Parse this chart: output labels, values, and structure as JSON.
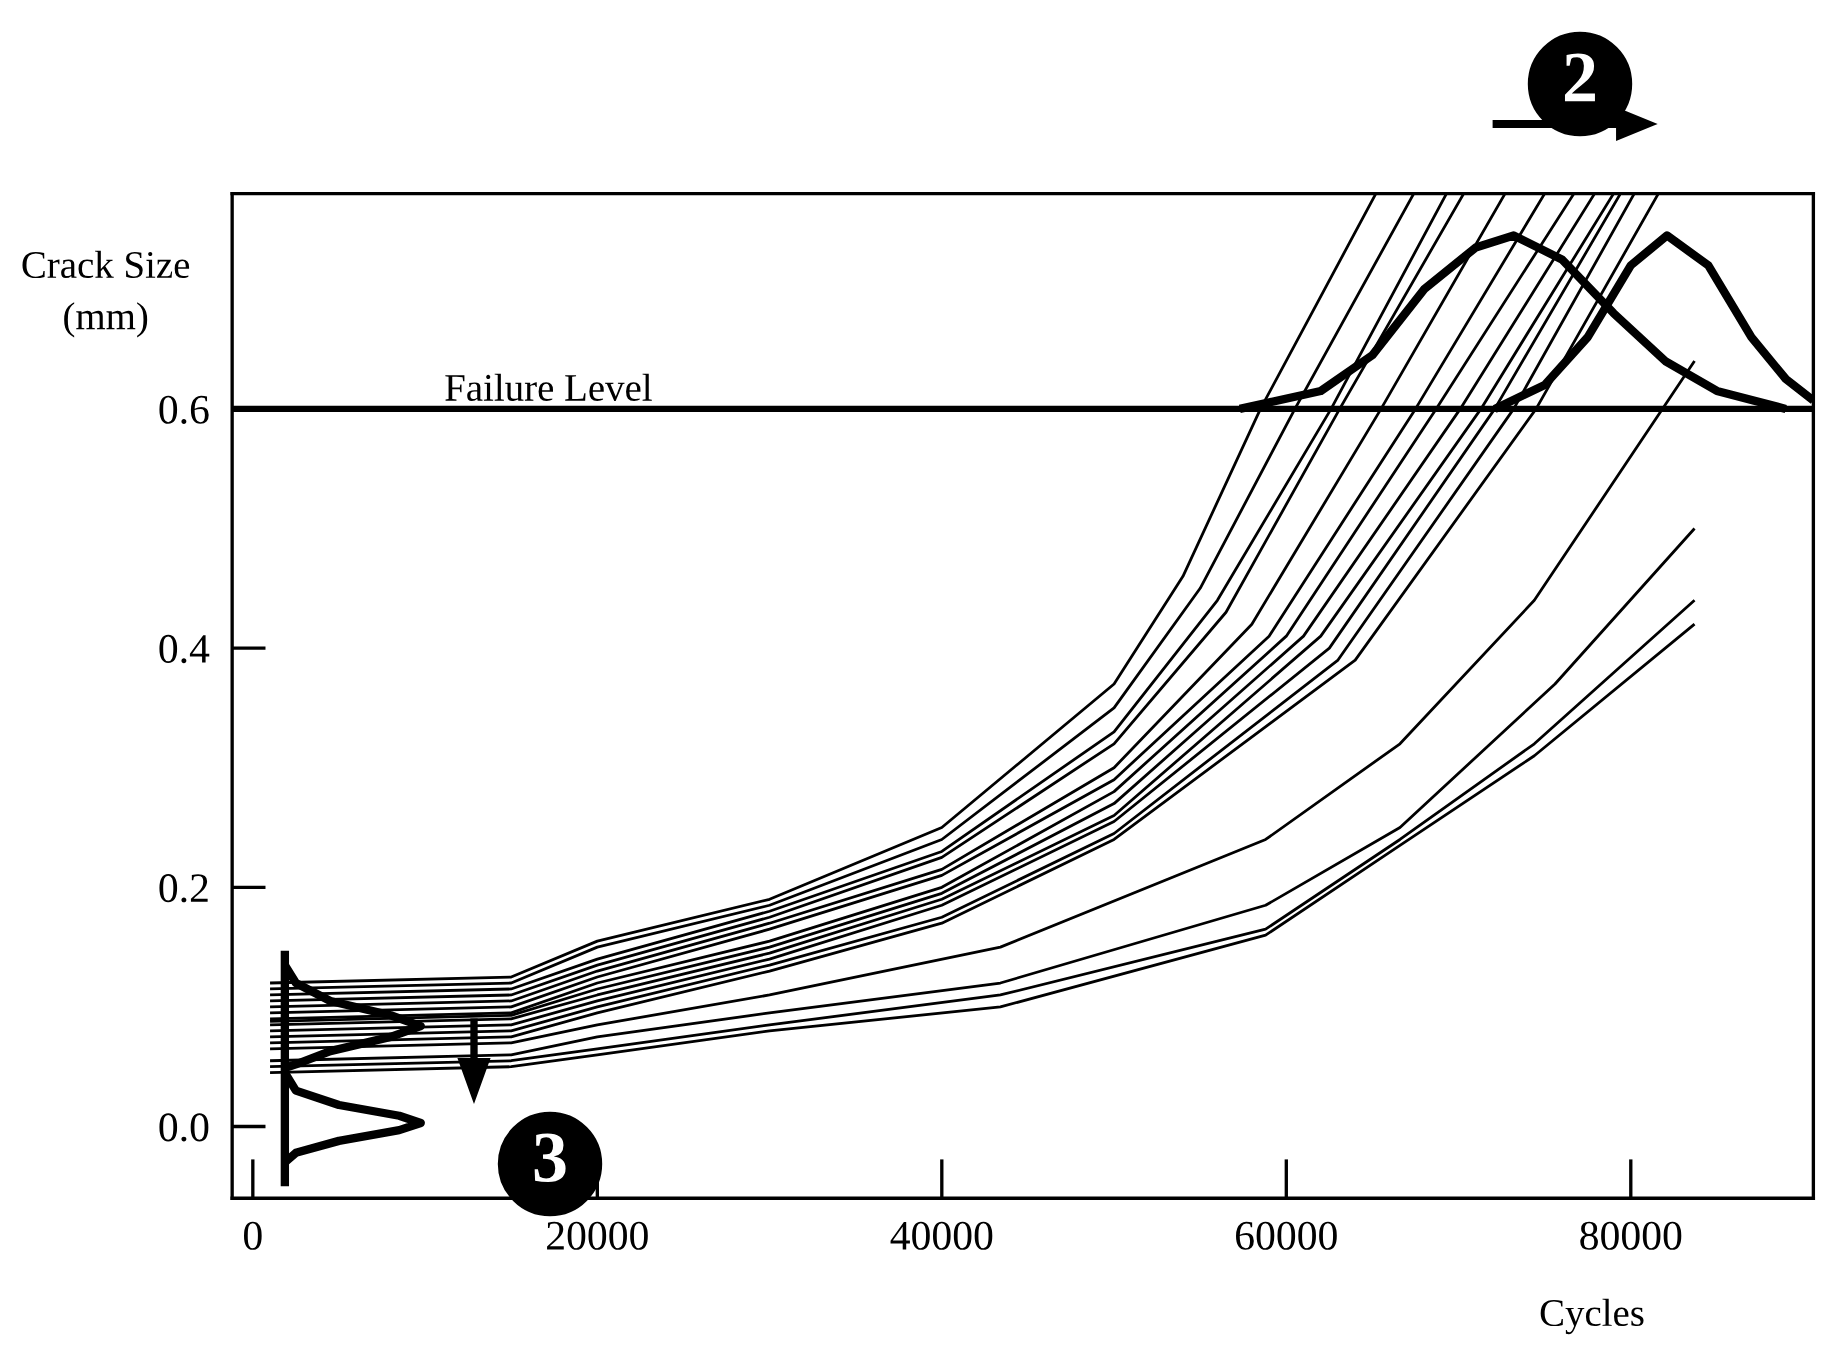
{
  "chart_data": {
    "type": "line",
    "xlabel": "Cycles",
    "ylabel": "Crack Size\n(mm)",
    "xlim": [
      -1200,
      90600
    ],
    "ylim": [
      -0.06,
      0.78
    ],
    "xticks": [
      0,
      20000,
      40000,
      60000,
      80000
    ],
    "yticks": [
      {
        "value": 0,
        "label": "0.0"
      },
      {
        "value": 0.2,
        "label": "0.2"
      },
      {
        "value": 0.4,
        "label": "0.4"
      },
      {
        "value": 0.6,
        "label": "0.6"
      }
    ],
    "grid": false,
    "legend": false,
    "marker": "none",
    "line_style": "solid",
    "ref_lines": [
      {
        "axis": "y",
        "value": 0.6,
        "label": "Failure Level",
        "color": "#000000"
      }
    ],
    "annotations": [
      "2",
      "3"
    ],
    "series": [
      {
        "color": "#000000",
        "x": [
          1000,
          15000,
          20000,
          30000,
          40000,
          50000,
          54000,
          58500,
          65200
        ],
        "values": [
          0.12,
          0.125,
          0.155,
          0.19,
          0.25,
          0.37,
          0.46,
          0.6,
          0.78
        ]
      },
      {
        "color": "#000000",
        "x": [
          1000,
          15000,
          20000,
          30000,
          40000,
          50000,
          55000,
          60500,
          67400
        ],
        "values": [
          0.115,
          0.12,
          0.15,
          0.185,
          0.24,
          0.35,
          0.45,
          0.6,
          0.78
        ]
      },
      {
        "color": "#000000",
        "x": [
          1000,
          15000,
          20000,
          30000,
          40000,
          50000,
          56000,
          62600,
          69300
        ],
        "values": [
          0.11,
          0.115,
          0.14,
          0.18,
          0.23,
          0.33,
          0.44,
          0.6,
          0.78
        ]
      },
      {
        "color": "#000000",
        "x": [
          1000,
          15000,
          20000,
          30000,
          40000,
          50000,
          56500,
          63100,
          70300
        ],
        "values": [
          0.105,
          0.11,
          0.135,
          0.175,
          0.225,
          0.32,
          0.43,
          0.6,
          0.78
        ]
      },
      {
        "color": "#000000",
        "x": [
          1000,
          15000,
          20000,
          30000,
          40000,
          50000,
          58000,
          65500,
          72700
        ],
        "values": [
          0.1,
          0.105,
          0.13,
          0.17,
          0.215,
          0.3,
          0.42,
          0.6,
          0.78
        ]
      },
      {
        "color": "#000000",
        "x": [
          1000,
          15000,
          20000,
          30000,
          40000,
          50000,
          59000,
          67500,
          75000
        ],
        "values": [
          0.095,
          0.1,
          0.125,
          0.165,
          0.21,
          0.29,
          0.41,
          0.6,
          0.78
        ]
      },
      {
        "color": "#000000",
        "x": [
          1000,
          15000,
          20000,
          30000,
          40000,
          50000,
          60000,
          68700,
          76700
        ],
        "values": [
          0.09,
          0.095,
          0.12,
          0.155,
          0.2,
          0.28,
          0.41,
          0.6,
          0.78
        ]
      },
      {
        "color": "#000000",
        "x": [
          1000,
          15000,
          20000,
          30000,
          40000,
          50000,
          61000,
          70100,
          77900
        ],
        "values": [
          0.088,
          0.093,
          0.115,
          0.15,
          0.195,
          0.27,
          0.41,
          0.6,
          0.78
        ]
      },
      {
        "color": "#000000",
        "x": [
          1000,
          15000,
          20000,
          30000,
          40000,
          50000,
          62000,
          71300,
          79000
        ],
        "values": [
          0.085,
          0.09,
          0.11,
          0.145,
          0.19,
          0.26,
          0.41,
          0.6,
          0.78
        ]
      },
      {
        "color": "#000000",
        "x": [
          1000,
          15000,
          20000,
          30000,
          40000,
          50000,
          62500,
          72100,
          79400
        ],
        "values": [
          0.08,
          0.085,
          0.105,
          0.14,
          0.185,
          0.255,
          0.4,
          0.6,
          0.78
        ]
      },
      {
        "color": "#000000",
        "x": [
          1000,
          15000,
          20000,
          30000,
          40000,
          50000,
          63000,
          73200,
          80200
        ],
        "values": [
          0.075,
          0.08,
          0.1,
          0.135,
          0.175,
          0.245,
          0.39,
          0.6,
          0.78
        ]
      },
      {
        "color": "#000000",
        "x": [
          1000,
          15000,
          20000,
          30000,
          40000,
          50000,
          64000,
          74500,
          81600
        ],
        "values": [
          0.07,
          0.075,
          0.095,
          0.13,
          0.17,
          0.24,
          0.39,
          0.6,
          0.78
        ]
      },
      {
        "color": "#000000",
        "x": [
          1000,
          15000,
          20000,
          30000,
          43400,
          58800,
          66600,
          74400,
          83700
        ],
        "values": [
          0.065,
          0.07,
          0.085,
          0.11,
          0.15,
          0.24,
          0.32,
          0.44,
          0.64
        ]
      },
      {
        "color": "#000000",
        "x": [
          1000,
          15000,
          20000,
          30000,
          43400,
          58800,
          66600,
          75600,
          83700
        ],
        "values": [
          0.055,
          0.06,
          0.075,
          0.095,
          0.12,
          0.185,
          0.25,
          0.37,
          0.5
        ]
      },
      {
        "color": "#000000",
        "x": [
          1000,
          15000,
          20000,
          30000,
          43400,
          58800,
          66600,
          74400,
          83700
        ],
        "values": [
          0.05,
          0.055,
          0.065,
          0.085,
          0.11,
          0.165,
          0.24,
          0.32,
          0.44
        ]
      },
      {
        "color": "#000000",
        "x": [
          1000,
          15000,
          20000,
          30000,
          43400,
          58800,
          66600,
          74400,
          83700
        ],
        "values": [
          0.045,
          0.05,
          0.06,
          0.08,
          0.1,
          0.16,
          0.235,
          0.31,
          0.42
        ]
      },
      {
        "color": "#000000",
        "x": [
          57300,
          62000,
          65000,
          68000,
          71000,
          73200,
          76000,
          79000,
          82000,
          85000,
          89000
        ],
        "values": [
          0.6,
          0.615,
          0.645,
          0.7,
          0.735,
          0.745,
          0.725,
          0.68,
          0.64,
          0.615,
          0.6
        ]
      },
      {
        "color": "#000000",
        "x": [
          72100,
          75000,
          77500,
          80000,
          82100,
          84500,
          87000,
          89000,
          90600
        ],
        "values": [
          0.6,
          0.62,
          0.66,
          0.72,
          0.745,
          0.72,
          0.66,
          0.625,
          0.607
        ]
      },
      {
        "color": "#000000",
        "x": [
          1860,
          1860
        ],
        "values": [
          0.147,
          -0.05
        ]
      },
      {
        "color": "#000000",
        "x": [
          1860,
          2500,
          4500,
          8000,
          9750,
          8000,
          4500,
          2500,
          1860
        ],
        "values": [
          0.135,
          0.12,
          0.105,
          0.093,
          0.084,
          0.075,
          0.063,
          0.052,
          0.049
        ]
      },
      {
        "color": "#000000",
        "x": [
          1860,
          2500,
          5000,
          8500,
          9750,
          8500,
          5000,
          2500,
          1860
        ],
        "values": [
          0.045,
          0.03,
          0.018,
          0.009,
          0.003,
          -0.003,
          -0.012,
          -0.022,
          -0.03
        ]
      }
    ]
  }
}
